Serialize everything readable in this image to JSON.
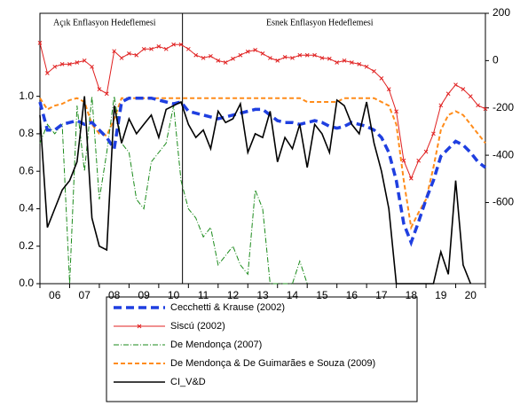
{
  "chart_data": {
    "type": "line",
    "annotations": [
      "Açık Enflasyon Hedeflemesi",
      "Esnek Enflasyon Hedeflemesi"
    ],
    "divider": 2010.8,
    "categories": [
      "06",
      "07",
      "08",
      "09",
      "10",
      "11",
      "12",
      "13",
      "14",
      "15",
      "16",
      "17",
      "18",
      "19",
      "20"
    ],
    "xlim": [
      2006,
      2021
    ],
    "xticks": [
      2006,
      2007,
      2008,
      2009,
      2010,
      2011,
      2012,
      2013,
      2014,
      2015,
      2016,
      2017,
      2018,
      2019,
      2020,
      2021
    ],
    "ylim": [
      0,
      1.443
    ],
    "yticks": [
      {
        "value": 0,
        "label": "0.0"
      },
      0.2,
      0.4,
      0.6,
      0.8,
      {
        "value": 1,
        "label": "1.0"
      }
    ],
    "y2lim": [
      -943,
      200
    ],
    "y2ticks": [
      200,
      0,
      -200,
      -400,
      -600
    ],
    "x": [
      2006,
      2006.25,
      2006.5,
      2006.75,
      2007,
      2007.25,
      2007.5,
      2007.75,
      2008,
      2008.25,
      2008.5,
      2008.75,
      2009,
      2009.25,
      2009.5,
      2009.75,
      2010,
      2010.25,
      2010.5,
      2010.75,
      2011,
      2011.25,
      2011.5,
      2011.75,
      2012,
      2012.25,
      2012.5,
      2012.75,
      2013,
      2013.25,
      2013.5,
      2013.75,
      2014,
      2014.25,
      2014.5,
      2014.75,
      2015,
      2015.25,
      2015.5,
      2015.75,
      2016,
      2016.25,
      2016.5,
      2016.75,
      2017,
      2017.25,
      2017.5,
      2017.75,
      2018,
      2018.25,
      2018.5,
      2018.75,
      2019,
      2019.25,
      2019.5,
      2019.75,
      2020,
      2020.25,
      2020.5,
      2020.75,
      2021
    ],
    "series": [
      {
        "name": "Cecchetti & Krause (2002)",
        "color": "#1f3fe0",
        "style": "dash",
        "values": [
          0.97,
          0.82,
          0.82,
          0.85,
          0.86,
          0.87,
          0.85,
          0.86,
          0.82,
          0.78,
          0.72,
          0.97,
          0.99,
          0.99,
          0.99,
          0.99,
          0.98,
          0.97,
          0.96,
          0.97,
          0.92,
          0.91,
          0.9,
          0.89,
          0.88,
          0.89,
          0.9,
          0.91,
          0.92,
          0.93,
          0.93,
          0.9,
          0.87,
          0.86,
          0.86,
          0.85,
          0.86,
          0.87,
          0.86,
          0.84,
          0.83,
          0.84,
          0.86,
          0.85,
          0.84,
          0.82,
          0.78,
          0.7,
          0.55,
          0.32,
          0.22,
          0.33,
          0.45,
          0.55,
          0.68,
          0.72,
          0.76,
          0.74,
          0.7,
          0.65,
          0.62
        ]
      },
      {
        "name": "Siscú (2002)",
        "color": "#e02020",
        "style": "cross",
        "axis": "y2",
        "values": [
          75,
          -53,
          -26,
          -15,
          -15,
          -8,
          0,
          -26,
          -121,
          -140,
          40,
          11,
          30,
          23,
          49,
          49,
          60,
          49,
          68,
          68,
          49,
          23,
          11,
          19,
          0,
          -8,
          8,
          23,
          38,
          45,
          30,
          11,
          0,
          15,
          11,
          23,
          23,
          23,
          11,
          8,
          -8,
          0,
          -8,
          -15,
          -26,
          -45,
          -75,
          -121,
          -215,
          -423,
          -498,
          -423,
          -385,
          -309,
          -189,
          -140,
          -102,
          -121,
          -151,
          -189,
          -204
        ]
      },
      {
        "name": "De Mendonça (2007)",
        "color": "#1a8a1a",
        "style": "dashdot",
        "values": [
          0.75,
          0.85,
          0.8,
          0.85,
          0,
          0.95,
          0.6,
          1.0,
          0.45,
          0.7,
          1.0,
          0.75,
          0.7,
          0.45,
          0.4,
          0.65,
          0.7,
          0.75,
          0.95,
          0.55,
          0.4,
          0.35,
          0.25,
          0.3,
          0.1,
          0.15,
          0.2,
          0.1,
          0.05,
          0.5,
          0.4,
          0,
          0,
          0,
          0,
          0.12,
          0,
          null,
          null,
          null,
          null,
          null,
          null,
          null,
          null,
          null,
          null,
          null,
          null,
          null,
          null,
          null,
          null,
          null,
          null,
          null,
          null,
          null,
          null,
          null,
          null
        ]
      },
      {
        "name": "De Mendonça & De Guimarães e Souza (2009)",
        "color": "#ff8c1a",
        "style": "dash2",
        "values": [
          0.99,
          0.93,
          0.95,
          0.96,
          0.98,
          0.99,
          0.97,
          0.85,
          0.8,
          0.79,
          0.88,
          0.99,
          0.99,
          0.99,
          0.99,
          0.99,
          0.99,
          0.99,
          0.99,
          0.99,
          0.99,
          0.99,
          0.99,
          0.99,
          0.99,
          0.99,
          0.99,
          0.99,
          0.99,
          0.99,
          0.99,
          0.99,
          0.99,
          0.99,
          0.99,
          0.99,
          0.97,
          0.97,
          0.97,
          0.97,
          0.97,
          0.99,
          0.99,
          0.99,
          0.99,
          0.99,
          0.97,
          0.95,
          0.85,
          0.55,
          0.3,
          0.38,
          0.45,
          0.62,
          0.82,
          0.9,
          0.92,
          0.9,
          0.85,
          0.8,
          0.75
        ]
      },
      {
        "name": "CI_V&D",
        "color": "#000000",
        "style": "solid",
        "values": [
          0.9,
          0.3,
          0.4,
          0.5,
          0.55,
          0.65,
          1.0,
          0.35,
          0.2,
          0.18,
          0.95,
          0.75,
          0.88,
          0.8,
          0.85,
          0.9,
          0.78,
          0.93,
          0.95,
          0.97,
          0.85,
          0.78,
          0.82,
          0.72,
          0.92,
          0.86,
          0.88,
          0.96,
          0.7,
          0.8,
          0.78,
          0.92,
          0.65,
          0.78,
          0.72,
          0.85,
          0.62,
          0.85,
          0.8,
          0.7,
          0.98,
          0.95,
          0.85,
          0.8,
          0.97,
          0.75,
          0.6,
          0.4,
          0,
          0,
          0,
          0,
          0,
          0,
          0.17,
          0.05,
          0.55,
          0.1,
          0,
          null,
          null
        ]
      }
    ]
  }
}
